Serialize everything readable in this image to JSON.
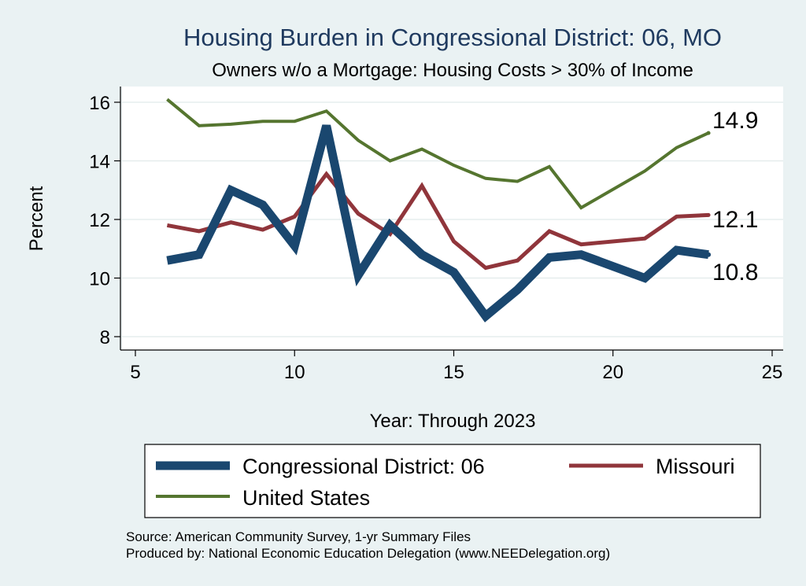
{
  "colors": {
    "background": "#eaf2f3",
    "plot_background": "#ffffff",
    "district": "#1a476f",
    "missouri": "#90353b",
    "united_states": "#55752f",
    "title": "#1f3a5f"
  },
  "chart_data": {
    "type": "line",
    "title": "Housing Burden in Congressional District:  06, MO",
    "subtitle": "Owners w/o a Mortgage: Housing Costs > 30% of Income",
    "xlabel": "Year: Through 2023",
    "ylabel": "Percent",
    "xlim": [
      5,
      25
    ],
    "ylim": [
      7.5,
      16.5
    ],
    "xticks": [
      5,
      10,
      15,
      20,
      25
    ],
    "yticks": [
      8,
      10,
      12,
      14,
      16
    ],
    "grid": true,
    "legend_position": "bottom",
    "series": [
      {
        "name": "Congressional District:  06",
        "color": "#1a476f",
        "x": [
          6,
          7,
          8,
          9,
          10,
          11,
          12,
          13,
          14,
          15,
          16,
          17,
          18,
          19,
          21,
          22,
          23
        ],
        "values": [
          10.6,
          10.8,
          13.0,
          12.5,
          11.1,
          15.2,
          10.1,
          11.8,
          10.8,
          10.2,
          8.7,
          9.6,
          10.7,
          10.8,
          10.0,
          10.95,
          10.8
        ],
        "end_label": "10.8"
      },
      {
        "name": "Missouri",
        "color": "#90353b",
        "x": [
          6,
          7,
          8,
          9,
          10,
          11,
          12,
          13,
          14,
          15,
          16,
          17,
          18,
          19,
          21,
          22,
          23
        ],
        "values": [
          11.8,
          11.6,
          11.9,
          11.65,
          12.1,
          13.55,
          12.2,
          11.5,
          13.15,
          11.25,
          10.35,
          10.6,
          11.6,
          11.15,
          11.35,
          12.1,
          12.15
        ],
        "end_label": "12.1"
      },
      {
        "name": "United States",
        "color": "#55752f",
        "x": [
          6,
          7,
          8,
          9,
          10,
          11,
          12,
          13,
          14,
          15,
          16,
          17,
          18,
          19,
          21,
          22,
          23
        ],
        "values": [
          16.1,
          15.2,
          15.25,
          15.35,
          15.35,
          15.7,
          14.7,
          14.0,
          14.4,
          13.85,
          13.4,
          13.3,
          13.8,
          12.4,
          13.65,
          14.45,
          14.95
        ],
        "end_label": "14.9"
      }
    ],
    "notes": [
      "Source: American Community Survey, 1-yr Summary Files",
      "Produced by: National Economic Education Delegation (www.NEEDelegation.org)"
    ]
  }
}
